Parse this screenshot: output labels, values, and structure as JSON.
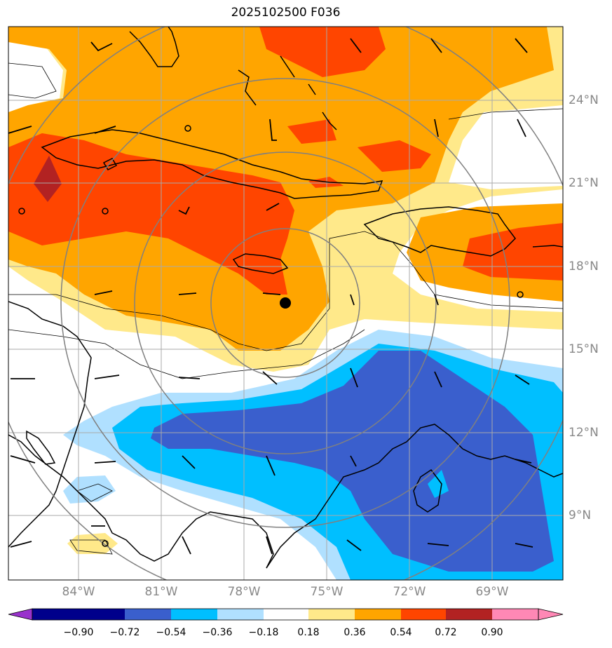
{
  "title": "2025102500 F036",
  "lat_labels": [
    "24°N",
    "21°N",
    "18°N",
    "15°N",
    "12°N",
    "9°N"
  ],
  "lon_labels": [
    "84°W",
    "81°W",
    "78°W",
    "75°W",
    "72°W",
    "69°W"
  ],
  "colorbar": {
    "ticks": [
      "−0.90",
      "−0.72",
      "−0.54",
      "−0.36",
      "−0.18",
      "0.18",
      "0.36",
      "0.54",
      "0.72",
      "0.90"
    ],
    "colors": [
      "#9932cc",
      "#00008b",
      "#3a5fcd",
      "#00bfff",
      "#b0e0ff",
      "#ffffff",
      "#ffe98a",
      "#ffa500",
      "#ff4500",
      "#b22222",
      "#ff88b5"
    ]
  },
  "colors": {
    "grid": "#aaaaaa",
    "coast": "#000000",
    "rings": "#808080",
    "strong_pos": "#b22222",
    "pos_high": "#ff4500",
    "pos_mid": "#ffa500",
    "pos_low": "#ffe98a",
    "neg_low": "#b0e0ff",
    "neg_mid": "#00bfff",
    "neg_high": "#3a5fcd"
  }
}
